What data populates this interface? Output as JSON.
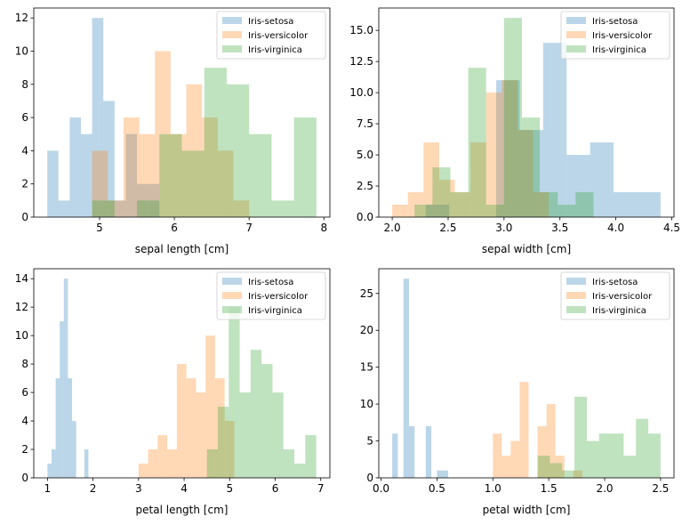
{
  "colors": {
    "setosa": "#1f77b4",
    "versicolor": "#ff7f0e",
    "virginica": "#2ca02c"
  },
  "chart_data": [
    {
      "type": "histogram",
      "xlabel": "sepal length [cm]",
      "ylabel": "",
      "xlim": [
        4.12,
        8.08
      ],
      "ylim": [
        0,
        12.6
      ],
      "xticks": [
        5,
        6,
        7,
        8
      ],
      "yticks": [
        0,
        2,
        4,
        6,
        8,
        10,
        12
      ],
      "tick_labels_x": [
        "5",
        "6",
        "7",
        "8"
      ],
      "tick_labels_y": [
        "0",
        "2",
        "4",
        "6",
        "8",
        "10",
        "12"
      ],
      "legend": {
        "position": "top-right",
        "entries": [
          "Iris-setosa",
          "Iris-versicolor",
          "Iris-virginica"
        ]
      },
      "series": [
        {
          "name": "Iris-setosa",
          "color_key": "setosa",
          "bins": [
            4.3,
            4.45,
            4.6,
            4.75,
            4.9,
            5.05,
            5.2,
            5.35,
            5.5,
            5.65,
            5.8
          ],
          "values": [
            4,
            1,
            6,
            5,
            12,
            7,
            1,
            5,
            2,
            2
          ]
        },
        {
          "name": "Iris-versicolor",
          "color_key": "versicolor",
          "bins": [
            4.9,
            5.11,
            5.32,
            5.53,
            5.74,
            5.95,
            6.16,
            6.37,
            6.58,
            6.79,
            7.0
          ],
          "values": [
            4,
            1,
            6,
            5,
            10,
            5,
            8,
            6,
            4,
            1
          ]
        },
        {
          "name": "Iris-virginica",
          "color_key": "virginica",
          "bins": [
            4.9,
            5.2,
            5.5,
            5.8,
            6.1,
            6.4,
            6.7,
            7.0,
            7.3,
            7.6,
            7.9
          ],
          "values": [
            1,
            0,
            1,
            5,
            4,
            9,
            8,
            5,
            1,
            6
          ]
        }
      ]
    },
    {
      "type": "histogram",
      "xlabel": "sepal width [cm]",
      "ylabel": "",
      "xlim": [
        1.88,
        4.52
      ],
      "ylim": [
        0,
        16.8
      ],
      "xticks": [
        2.0,
        2.5,
        3.0,
        3.5,
        4.0,
        4.5
      ],
      "yticks": [
        0,
        2.5,
        5.0,
        7.5,
        10.0,
        12.5,
        15.0
      ],
      "tick_labels_x": [
        "2.0",
        "2.5",
        "3.0",
        "3.5",
        "4.0",
        "4.5"
      ],
      "tick_labels_y": [
        "0.0",
        "2.5",
        "5.0",
        "7.5",
        "10.0",
        "12.5",
        "15.0"
      ],
      "legend": {
        "position": "top-right",
        "entries": [
          "Iris-setosa",
          "Iris-versicolor",
          "Iris-virginica"
        ]
      },
      "series": [
        {
          "name": "Iris-setosa",
          "color_key": "setosa",
          "bins": [
            2.3,
            2.51,
            2.72,
            2.93,
            3.14,
            3.35,
            3.56,
            3.77,
            3.98,
            4.19,
            4.4
          ],
          "values": [
            1,
            0,
            0,
            11,
            7,
            14,
            5,
            6,
            2,
            2
          ]
        },
        {
          "name": "Iris-versicolor",
          "color_key": "versicolor",
          "bins": [
            2.0,
            2.14,
            2.28,
            2.42,
            2.56,
            2.7,
            2.84,
            2.98,
            3.12,
            3.26,
            3.4
          ],
          "values": [
            1,
            2,
            6,
            3,
            2,
            6,
            10,
            11,
            7,
            2
          ]
        },
        {
          "name": "Iris-virginica",
          "color_key": "virginica",
          "bins": [
            2.2,
            2.36,
            2.52,
            2.68,
            2.84,
            3.0,
            3.16,
            3.32,
            3.48,
            3.64,
            3.8
          ],
          "values": [
            1,
            4,
            2,
            12,
            1,
            16,
            8,
            2,
            1,
            2
          ]
        }
      ]
    },
    {
      "type": "histogram",
      "xlabel": "petal length [cm]",
      "ylabel": "",
      "xlim": [
        0.7,
        7.2
      ],
      "ylim": [
        0,
        14.7
      ],
      "xticks": [
        1,
        2,
        3,
        4,
        5,
        6,
        7
      ],
      "yticks": [
        0,
        2,
        4,
        6,
        8,
        10,
        12,
        14
      ],
      "tick_labels_x": [
        "1",
        "2",
        "3",
        "4",
        "5",
        "6",
        "7"
      ],
      "tick_labels_y": [
        "0",
        "2",
        "4",
        "6",
        "8",
        "10",
        "12",
        "14"
      ],
      "legend": {
        "position": "top-right",
        "entries": [
          "Iris-setosa",
          "Iris-versicolor",
          "Iris-virginica"
        ]
      },
      "series": [
        {
          "name": "Iris-setosa",
          "color_key": "setosa",
          "bins": [
            1.0,
            1.09,
            1.18,
            1.27,
            1.36,
            1.45,
            1.54,
            1.63,
            1.72,
            1.81,
            1.9
          ],
          "values": [
            1,
            2,
            7,
            11,
            14,
            7,
            4,
            0,
            0,
            2
          ]
        },
        {
          "name": "Iris-versicolor",
          "color_key": "versicolor",
          "bins": [
            3.0,
            3.21,
            3.42,
            3.63,
            3.84,
            4.05,
            4.26,
            4.47,
            4.68,
            4.89,
            5.1
          ],
          "values": [
            1,
            2,
            3,
            2,
            8,
            7,
            6,
            10,
            7,
            4
          ]
        },
        {
          "name": "Iris-virginica",
          "color_key": "virginica",
          "bins": [
            4.5,
            4.74,
            4.98,
            5.22,
            5.46,
            5.7,
            5.94,
            6.18,
            6.42,
            6.66,
            6.9
          ],
          "values": [
            2,
            5,
            12,
            6,
            9,
            8,
            6,
            2,
            1,
            3
          ]
        }
      ]
    },
    {
      "type": "histogram",
      "xlabel": "petal width [cm]",
      "ylabel": "",
      "xlim": [
        -0.02,
        2.62
      ],
      "ylim": [
        0,
        28.35
      ],
      "xticks": [
        0.0,
        0.5,
        1.0,
        1.5,
        2.0,
        2.5
      ],
      "yticks": [
        0,
        5,
        10,
        15,
        20,
        25
      ],
      "tick_labels_x": [
        "0.0",
        "0.5",
        "1.0",
        "1.5",
        "2.0",
        "2.5"
      ],
      "tick_labels_y": [
        "0",
        "5",
        "10",
        "15",
        "20",
        "25"
      ],
      "legend": {
        "position": "top-right",
        "entries": [
          "Iris-setosa",
          "Iris-versicolor",
          "Iris-virginica"
        ]
      },
      "series": [
        {
          "name": "Iris-setosa",
          "color_key": "setosa",
          "bins": [
            0.1,
            0.15,
            0.2,
            0.25,
            0.3,
            0.35,
            0.4,
            0.45,
            0.5,
            0.55,
            0.6
          ],
          "values": [
            6,
            0,
            27,
            7,
            0,
            0,
            7,
            0,
            1,
            1
          ]
        },
        {
          "name": "Iris-versicolor",
          "color_key": "versicolor",
          "bins": [
            1.0,
            1.08,
            1.16,
            1.24,
            1.32,
            1.4,
            1.48,
            1.56,
            1.64,
            1.72,
            1.8
          ],
          "values": [
            6,
            3,
            5,
            13,
            0,
            7,
            10,
            3,
            0,
            1
          ]
        },
        {
          "name": "Iris-virginica",
          "color_key": "virginica",
          "bins": [
            1.4,
            1.51,
            1.62,
            1.73,
            1.84,
            1.95,
            2.06,
            2.17,
            2.28,
            2.39,
            2.5
          ],
          "values": [
            3,
            2,
            1,
            11,
            5,
            6,
            6,
            3,
            8,
            6
          ]
        }
      ]
    }
  ]
}
